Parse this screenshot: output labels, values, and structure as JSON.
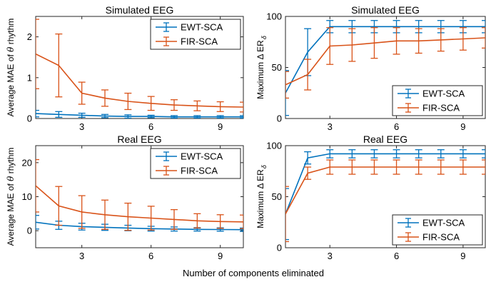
{
  "figure": {
    "shared_xlabel": "Number of components eliminated"
  },
  "colors": {
    "EWT-SCA": "#0072BD",
    "FIR-SCA": "#D95319"
  },
  "chart_data": [
    {
      "type": "line",
      "title": "Simulated EEG",
      "xlabel": "",
      "ylabel": "Average MAE of θ rhythm",
      "xlim": [
        1,
        10
      ],
      "ylim": [
        0,
        2.5
      ],
      "xticks": [
        3,
        6,
        9
      ],
      "yticks": [
        0,
        1,
        2
      ],
      "legend_position": "top-right",
      "x": [
        1,
        2,
        3,
        4,
        5,
        6,
        7,
        8,
        9,
        10
      ],
      "series": [
        {
          "name": "EWT-SCA",
          "values": [
            0.12,
            0.1,
            0.08,
            0.06,
            0.05,
            0.05,
            0.04,
            0.04,
            0.04,
            0.04
          ],
          "errors": [
            0.08,
            0.07,
            0.05,
            0.04,
            0.04,
            0.03,
            0.03,
            0.03,
            0.03,
            0.03
          ]
        },
        {
          "name": "FIR-SCA",
          "values": [
            1.58,
            1.3,
            0.62,
            0.5,
            0.42,
            0.37,
            0.33,
            0.31,
            0.29,
            0.28
          ],
          "errors": [
            0.85,
            0.77,
            0.27,
            0.2,
            0.2,
            0.17,
            0.13,
            0.12,
            0.12,
            0.12
          ]
        }
      ]
    },
    {
      "type": "line",
      "title": "Simulated EEG",
      "xlabel": "",
      "ylabel": "Maximum Δ ER",
      "ylabel_subscript": "δ",
      "xlim": [
        1,
        10
      ],
      "ylim": [
        0,
        100
      ],
      "xticks": [
        3,
        6,
        9
      ],
      "yticks": [
        0,
        50,
        100
      ],
      "legend_position": "bottom-right",
      "x": [
        1,
        2,
        3,
        4,
        5,
        6,
        7,
        8,
        9,
        10
      ],
      "series": [
        {
          "name": "EWT-SCA",
          "values": [
            25,
            65,
            90,
            90,
            90,
            90,
            90,
            90,
            90,
            90
          ],
          "errors": [
            22,
            23,
            6,
            6,
            6,
            6,
            6,
            6,
            6,
            6
          ]
        },
        {
          "name": "FIR-SCA",
          "values": [
            33,
            43,
            71,
            72,
            74,
            76,
            76,
            77,
            78,
            79
          ],
          "errors": [
            13,
            15,
            18,
            16,
            15,
            13,
            12,
            11,
            11,
            10
          ]
        }
      ]
    },
    {
      "type": "line",
      "title": "Real EEG",
      "xlabel": "Number of components eliminated",
      "ylabel": "Average MAE of θ rhythm",
      "xlim": [
        1,
        10
      ],
      "ylim": [
        -5,
        25
      ],
      "xticks": [
        3,
        6,
        9
      ],
      "yticks": [
        0,
        10,
        20
      ],
      "legend_position": "top-right",
      "x": [
        1,
        2,
        3,
        4,
        5,
        6,
        7,
        8,
        9,
        10
      ],
      "series": [
        {
          "name": "EWT-SCA",
          "values": [
            2.5,
            1.6,
            1.2,
            1.0,
            0.8,
            0.6,
            0.5,
            0.4,
            0.35,
            0.3
          ],
          "errors": [
            2.0,
            1.2,
            1.0,
            0.9,
            0.8,
            0.7,
            0.6,
            0.5,
            0.5,
            0.5
          ]
        },
        {
          "name": "FIR-SCA",
          "values": [
            13.2,
            7.3,
            5.5,
            4.7,
            4.1,
            3.7,
            3.3,
            2.9,
            2.7,
            2.6
          ],
          "errors": [
            7.7,
            5.7,
            4.8,
            4.3,
            4.0,
            3.5,
            2.9,
            2.1,
            2.0,
            2.0
          ]
        }
      ]
    },
    {
      "type": "line",
      "title": "Real EEG",
      "xlabel": "Number of components eliminated",
      "ylabel": "Maximum Δ ER",
      "ylabel_subscript": "δ",
      "xlim": [
        1,
        10
      ],
      "ylim": [
        0,
        100
      ],
      "xticks": [
        3,
        6,
        9
      ],
      "yticks": [
        0,
        50,
        100
      ],
      "legend_position": "bottom-right",
      "x": [
        1,
        2,
        3,
        4,
        5,
        6,
        7,
        8,
        9,
        10
      ],
      "series": [
        {
          "name": "EWT-SCA",
          "values": [
            33,
            88,
            92,
            92,
            92,
            92,
            92,
            92,
            92,
            92
          ],
          "errors": [
            25,
            6,
            4,
            4,
            4,
            4,
            4,
            4,
            4,
            4
          ]
        },
        {
          "name": "FIR-SCA",
          "values": [
            33,
            73,
            79,
            79,
            79,
            79,
            79,
            79,
            79,
            79
          ],
          "errors": [
            27,
            6,
            7,
            7,
            7,
            7,
            7,
            7,
            7,
            7
          ]
        }
      ]
    }
  ]
}
